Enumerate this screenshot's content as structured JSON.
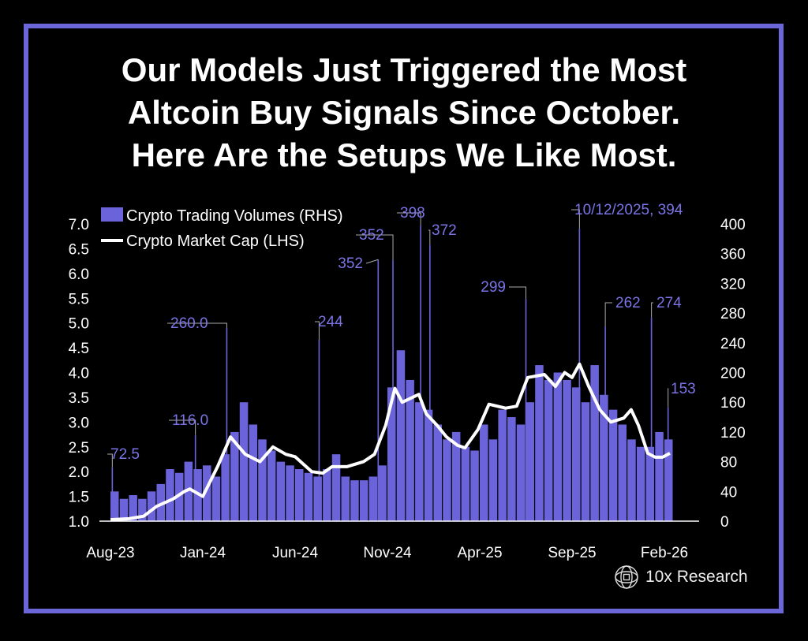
{
  "title": {
    "lines": [
      "Our Models Just Triggered the Most",
      "Altcoin Buy Signals Since October.",
      "Here Are the Setups We Like Most."
    ]
  },
  "brand": {
    "name": "10x Research"
  },
  "colors": {
    "border": "#6b67d8",
    "bars": "#6b63d9",
    "line": "#ffffff",
    "annotation": "#7a74e6"
  },
  "chart_data": {
    "type": "bar+line",
    "x_unit": "months since Aug-23",
    "x_ticks": [
      {
        "t": 0,
        "label": "Aug-23"
      },
      {
        "t": 5,
        "label": "Jan-24"
      },
      {
        "t": 10,
        "label": "Jun-24"
      },
      {
        "t": 15,
        "label": "Nov-24"
      },
      {
        "t": 20,
        "label": "Apr-25"
      },
      {
        "t": 25,
        "label": "Sep-25"
      },
      {
        "t": 30,
        "label": "Feb-26"
      }
    ],
    "left_axis": {
      "range": [
        1.0,
        7.0
      ],
      "ticks": [
        "1.0",
        "1.5",
        "2.0",
        "2.5",
        "3.0",
        "3.5",
        "4.0",
        "4.5",
        "5.0",
        "5.5",
        "6.0",
        "6.5",
        "7.0"
      ]
    },
    "right_axis": {
      "range": [
        0,
        400
      ],
      "ticks": [
        "0",
        "40",
        "80",
        "120",
        "160",
        "200",
        "240",
        "280",
        "320",
        "360",
        "400"
      ]
    },
    "legend": {
      "position": "top-left",
      "entries": [
        "Crypto Trading Volumes (RHS)",
        "Crypto Market Cap (LHS)"
      ]
    },
    "volumes": {
      "name": "Crypto Trading Volumes (RHS)",
      "step_months": 0.5,
      "values": [
        40,
        30,
        35,
        30,
        40,
        50,
        70,
        65,
        80,
        70,
        75,
        60,
        90,
        120,
        160,
        130,
        110,
        95,
        80,
        75,
        70,
        65,
        60,
        70,
        90,
        60,
        55,
        55,
        60,
        75,
        180,
        230,
        190,
        160,
        150,
        130,
        110,
        120,
        100,
        95,
        130,
        110,
        150,
        140,
        130,
        160,
        210,
        190,
        200,
        190,
        180,
        160,
        210,
        170,
        150,
        130,
        110,
        100,
        100,
        120,
        110
      ]
    },
    "market_cap": {
      "name": "Crypto Market Cap (LHS)",
      "points": [
        [
          0,
          1.03
        ],
        [
          1,
          1.05
        ],
        [
          1.8,
          1.1
        ],
        [
          2.5,
          1.3
        ],
        [
          3.4,
          1.45
        ],
        [
          3.4,
          1.45
        ],
        [
          4,
          1.6
        ],
        [
          4.3,
          1.65
        ],
        [
          5,
          1.5
        ],
        [
          5.8,
          2.1
        ],
        [
          6.5,
          2.7
        ],
        [
          7.3,
          2.35
        ],
        [
          8.1,
          2.2
        ],
        [
          8.8,
          2.5
        ],
        [
          9.5,
          2.35
        ],
        [
          10,
          2.3
        ],
        [
          10.9,
          2.0
        ],
        [
          11.5,
          1.97
        ],
        [
          12,
          2.1
        ],
        [
          12.8,
          2.1
        ],
        [
          13.7,
          2.2
        ],
        [
          14.3,
          2.35
        ],
        [
          14.9,
          2.93
        ],
        [
          15.4,
          3.68
        ],
        [
          15.8,
          3.4
        ],
        [
          16.7,
          3.56
        ],
        [
          17.1,
          3.17
        ],
        [
          17.7,
          2.93
        ],
        [
          18.2,
          2.7
        ],
        [
          18.8,
          2.53
        ],
        [
          19.2,
          2.48
        ],
        [
          19.9,
          2.85
        ],
        [
          20.5,
          3.36
        ],
        [
          21.4,
          3.28
        ],
        [
          22,
          3.32
        ],
        [
          22.6,
          3.9
        ],
        [
          23.5,
          3.96
        ],
        [
          24.1,
          3.72
        ],
        [
          24.6,
          4.0
        ],
        [
          25,
          3.9
        ],
        [
          25.4,
          4.17
        ],
        [
          25.9,
          3.72
        ],
        [
          26.5,
          3.25
        ],
        [
          27.1,
          3.0
        ],
        [
          27.8,
          3.08
        ],
        [
          28.2,
          3.25
        ],
        [
          28.6,
          2.93
        ],
        [
          29.1,
          2.37
        ],
        [
          29.5,
          2.29
        ],
        [
          29.9,
          2.29
        ],
        [
          30.3,
          2.37
        ]
      ]
    },
    "annotations": [
      {
        "t": 0.1,
        "value": 72.5,
        "label": "72.5"
      },
      {
        "t": 4.6,
        "value": 116,
        "label": "116.0"
      },
      {
        "t": 6.3,
        "value": 260,
        "label": "260.0"
      },
      {
        "t": 11.3,
        "value": 244,
        "label": "244"
      },
      {
        "t": 14.5,
        "value": 352,
        "label": "352"
      },
      {
        "t": 15.3,
        "value": 352,
        "label": "352"
      },
      {
        "t": 16.8,
        "value": 398,
        "label": "398"
      },
      {
        "t": 17.3,
        "value": 372,
        "label": "372"
      },
      {
        "t": 22.5,
        "value": 299,
        "label": "299"
      },
      {
        "t": 25.4,
        "value": 394,
        "label": "10/12/2025, 394"
      },
      {
        "t": 26.8,
        "value": 262,
        "label": "262"
      },
      {
        "t": 29.3,
        "value": 274,
        "label": "274"
      },
      {
        "t": 30.2,
        "value": 153,
        "label": "153"
      }
    ]
  }
}
